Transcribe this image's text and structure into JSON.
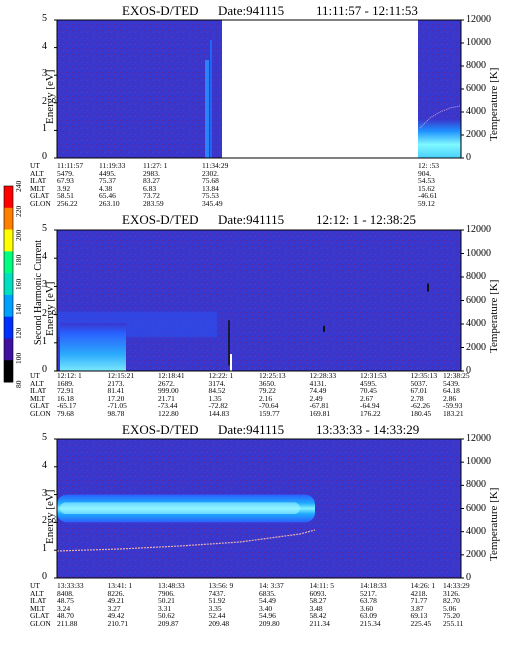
{
  "colorbar": {
    "label": "Second Harmonic Current",
    "ticks": [
      "240",
      "220",
      "200",
      "180",
      "160",
      "140",
      "120",
      "100",
      "80"
    ],
    "colors": [
      "#ff0000",
      "#ff7f00",
      "#ffff00",
      "#00ff80",
      "#00e0c0",
      "#00a0ff",
      "#0030ff",
      "#4010a0",
      "#000000"
    ]
  },
  "chart_data": [
    {
      "type": "heatmap",
      "title": "EXOS-D/TED",
      "date_label": "Date:941115",
      "time_range": "11:11:57 - 12:11:53",
      "ylabel": "Energy [eV]",
      "ylim": [
        0,
        5
      ],
      "yticks": [
        "0",
        "1",
        "2",
        "3",
        "4",
        "5"
      ],
      "y2label": "Temperature [K]",
      "y2lim": [
        0,
        12000
      ],
      "y2ticks": [
        "0",
        "2000",
        "4000",
        "6000",
        "8000",
        "10000",
        "12000"
      ],
      "data_gap": true,
      "ephemeris": {
        "row_labels": [
          "UT",
          "ALT",
          "ILAT",
          "MLT",
          "GLAT",
          "GLON"
        ],
        "columns": [
          [
            "11:11:57",
            "5479.",
            "67.93",
            "3.92",
            "58.51",
            "256.22"
          ],
          [
            "11:19:33",
            "4495.",
            "75.37",
            "4.38",
            "65.46",
            "263.10"
          ],
          [
            "11:27: 1",
            "2983.",
            "83.27",
            "6.83",
            "73.72",
            "283.59"
          ],
          [
            "11:34:29",
            "2302.",
            "75.68",
            "13.84",
            "75.53",
            "345.49"
          ],
          [
            "12:  :53",
            "904.",
            "54.53",
            "15.62",
            "-46.61",
            "59.12"
          ]
        ]
      }
    },
    {
      "type": "heatmap",
      "title": "EXOS-D/TED",
      "date_label": "Date:941115",
      "time_range": "12:12: 1 - 12:38:25",
      "ylabel": "Energy [eV]",
      "ylim": [
        0,
        5
      ],
      "yticks": [
        "0",
        "1",
        "2",
        "3",
        "4",
        "5"
      ],
      "y2label": "Temperature [K]",
      "y2lim": [
        0,
        12000
      ],
      "y2ticks": [
        "0",
        "2000",
        "4000",
        "6000",
        "8000",
        "10000",
        "12000"
      ],
      "ephemeris": {
        "row_labels": [
          "UT",
          "ALT",
          "ILAT",
          "MLT",
          "GLAT",
          "GLON"
        ],
        "columns": [
          [
            "12:12: 1",
            "1689.",
            "72.91",
            "16.18",
            "-65.17",
            "79.68"
          ],
          [
            "12:15:21",
            "2173.",
            "81.41",
            "17.20",
            "-71.05",
            "98.78"
          ],
          [
            "12:18:41",
            "2672.",
            "999.00",
            "21.71",
            "-73.44",
            "122.80"
          ],
          [
            "12:22: 1",
            "3174.",
            "84.52",
            "1.35",
            "-72.82",
            "144.83"
          ],
          [
            "12:25:13",
            "3650.",
            "79.22",
            "2.16",
            "-70.64",
            "159.77"
          ],
          [
            "12:28:33",
            "4131.",
            "74.49",
            "2.49",
            "-67.81",
            "169.81"
          ],
          [
            "12:31:53",
            "4595.",
            "70.45",
            "2.67",
            "-64.94",
            "176.22"
          ],
          [
            "12:35:13",
            "5037.",
            "67.01",
            "2.78",
            "-62.26",
            "180.45"
          ],
          [
            "12:38:25",
            "5439.",
            "64.18",
            "2.86",
            "-59.93",
            "183.21"
          ]
        ]
      }
    },
    {
      "type": "heatmap",
      "title": "EXOS-D/TED",
      "date_label": "Date:941115",
      "time_range": "13:33:33 - 14:33:29",
      "ylabel": "Energy [eV]",
      "ylim": [
        0,
        5
      ],
      "yticks": [
        "0",
        "1",
        "2",
        "3",
        "4",
        "5"
      ],
      "y2label": "Temperature [K]",
      "y2lim": [
        0,
        12000
      ],
      "y2ticks": [
        "0",
        "2000",
        "4000",
        "6000",
        "8000",
        "10000",
        "12000"
      ],
      "ephemeris": {
        "row_labels": [
          "UT",
          "ALT",
          "ILAT",
          "MLT",
          "GLAT",
          "GLON"
        ],
        "columns": [
          [
            "13:33:33",
            "8408.",
            "48.75",
            "3.24",
            "48.70",
            "211.88"
          ],
          [
            "13:41: 1",
            "8226.",
            "49.21",
            "3.27",
            "49.42",
            "210.71"
          ],
          [
            "13:48:33",
            "7906.",
            "50.21",
            "3.31",
            "50.62",
            "209.87"
          ],
          [
            "13:56: 9",
            "7437.",
            "51.92",
            "3.35",
            "52.44",
            "209.48"
          ],
          [
            "14: 3:37",
            "6835.",
            "54.49",
            "3.40",
            "54.96",
            "209.80"
          ],
          [
            "14:11: 5",
            "6093.",
            "58.27",
            "3.48",
            "58.42",
            "211.34"
          ],
          [
            "14:18:33",
            "5217.",
            "63.78",
            "3.60",
            "63.09",
            "215.34"
          ],
          [
            "14:26: 1",
            "4218.",
            "71.77",
            "3.87",
            "69.13",
            "225.45"
          ],
          [
            "14:33:29",
            "3126.",
            "82.70",
            "5.06",
            "75.20",
            "255.11"
          ]
        ]
      }
    }
  ]
}
